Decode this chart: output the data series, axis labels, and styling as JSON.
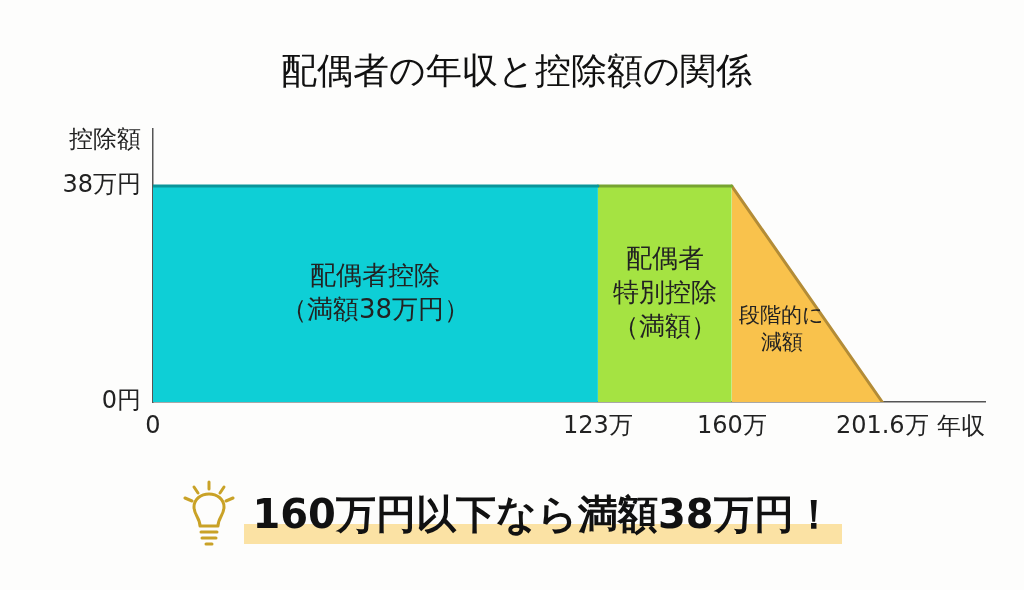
{
  "chart_data": {
    "type": "area",
    "title": "配偶者の年収と控除額の関係",
    "xlabel": "年収",
    "ylabel": "控除額",
    "series": [
      {
        "name": "配偶者控除（満額38万円）",
        "color": "#0ecfd6",
        "x": [
          0,
          123
        ],
        "values": [
          38,
          38
        ]
      },
      {
        "name": "配偶者特別控除（満額）",
        "color": "#a5e342",
        "x": [
          123,
          160
        ],
        "values": [
          38,
          38
        ]
      },
      {
        "name": "段階的に減額",
        "color": "#f9c24c",
        "x": [
          160,
          201.6
        ],
        "values": [
          38,
          0
        ]
      }
    ],
    "xlim": [
      0,
      230
    ],
    "xticks": [
      0,
      {
        "value": 123,
        "label": "123万"
      },
      {
        "value": 160,
        "label": "160万"
      },
      {
        "value": 201.6,
        "label": "201.6万"
      }
    ],
    "ylim": [
      0,
      48
    ],
    "yticks": [
      {
        "value": 0,
        "label": "0円"
      },
      {
        "value": 38,
        "label": "38万円"
      }
    ],
    "grid": false,
    "annotations": [
      "160万円以下なら満額38万円！"
    ]
  }
}
